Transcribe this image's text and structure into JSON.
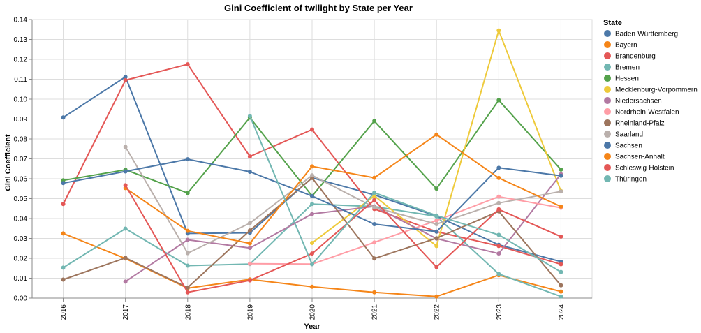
{
  "chart_data": {
    "type": "line",
    "title": "Gini Coefficient of twilight by State per Year",
    "xlabel": "Year",
    "ylabel": "Gini Coefficient",
    "x": [
      "2016",
      "2017",
      "2018",
      "2019",
      "2020",
      "2021",
      "2022",
      "2023",
      "2024"
    ],
    "ylim": [
      0,
      0.14
    ],
    "yticks": [
      "0.00",
      "0.01",
      "0.02",
      "0.03",
      "0.04",
      "0.05",
      "0.06",
      "0.07",
      "0.08",
      "0.09",
      "0.10",
      "0.11",
      "0.12",
      "0.13",
      "0.14"
    ],
    "grid": true,
    "legend": {
      "title": "State",
      "position": "right"
    },
    "series": [
      {
        "name": "Baden-Württemberg",
        "color": "#4c78a8",
        "values": [
          0.0908,
          0.1112,
          0.0325,
          0.0328,
          0.0605,
          0.0519,
          0.0412,
          0.0268,
          0.0183
        ]
      },
      {
        "name": "Bayern",
        "color": "#f58518",
        "values": [
          0.0325,
          0.0199,
          0.005,
          0.0094,
          0.0057,
          0.0029,
          0.0008,
          0.0115,
          0.0033
        ]
      },
      {
        "name": "Brandenburg",
        "color": "#e45756",
        "values": [
          0.0473,
          0.1095,
          0.1175,
          0.0712,
          0.0847,
          0.0448,
          0.0334,
          0.0262,
          0.017
        ]
      },
      {
        "name": "Bremen",
        "color": "#72b7b2",
        "values": [
          0.0153,
          0.0349,
          0.0163,
          0.0171,
          0.0473,
          0.046,
          0.0411,
          0.0121,
          0.0008
        ]
      },
      {
        "name": "Hessen",
        "color": "#54a24b",
        "values": [
          0.0592,
          0.0645,
          0.0528,
          0.0907,
          0.0513,
          0.089,
          0.055,
          0.0995,
          0.0646
        ]
      },
      {
        "name": "Mecklenburg-Vorpommern",
        "color": "#eeca3b",
        "values": [
          null,
          null,
          null,
          null,
          0.0277,
          0.0514,
          0.0262,
          0.1345,
          0.0538
        ]
      },
      {
        "name": "Niedersachsen",
        "color": "#b279a2",
        "values": [
          null,
          0.0083,
          0.0293,
          0.0252,
          0.0423,
          0.0461,
          0.0299,
          0.0224,
          0.0623
        ]
      },
      {
        "name": "Nordrhein-Westfalen",
        "color": "#ff9da6",
        "values": [
          null,
          null,
          null,
          0.0173,
          0.0171,
          0.028,
          0.039,
          0.051,
          0.0454
        ]
      },
      {
        "name": "Rheinland-Pfalz",
        "color": "#9d755d",
        "values": [
          0.0093,
          0.0202,
          0.0053,
          0.034,
          0.0604,
          0.0199,
          0.0301,
          0.0436,
          0.0064
        ]
      },
      {
        "name": "Saarland",
        "color": "#bab0ac",
        "values": [
          null,
          0.076,
          0.0226,
          0.0377,
          0.0617,
          0.0456,
          0.0372,
          0.0478,
          0.0536
        ]
      },
      {
        "name": "Sachsen",
        "color": "#4c78a8",
        "values": [
          0.0578,
          0.0637,
          0.0698,
          0.0635,
          0.0513,
          0.0372,
          0.0334,
          0.0655,
          0.0615
        ]
      },
      {
        "name": "Sachsen-Anhalt",
        "color": "#f58518",
        "values": [
          null,
          0.0553,
          0.0338,
          0.0275,
          0.0662,
          0.0605,
          0.0822,
          0.0604,
          0.046
        ]
      },
      {
        "name": "Schleswig-Holstein",
        "color": "#e45756",
        "values": [
          null,
          0.0567,
          0.0029,
          0.0089,
          0.0224,
          0.0492,
          0.0156,
          0.0446,
          0.0309
        ]
      },
      {
        "name": "Thüringen",
        "color": "#72b7b2",
        "values": [
          null,
          null,
          null,
          0.0915,
          0.017,
          0.053,
          0.0415,
          0.0318,
          0.0131
        ]
      }
    ]
  }
}
